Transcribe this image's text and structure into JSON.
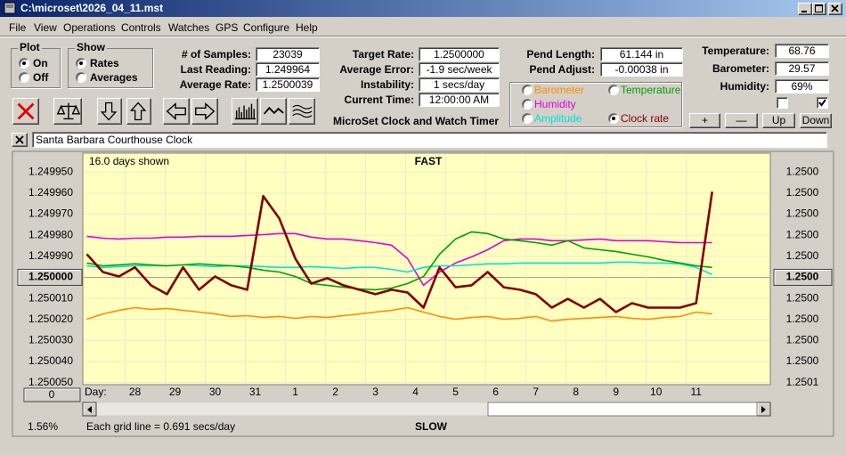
{
  "window": {
    "title": "C:\\microset\\2026_04_11.mst"
  },
  "menu": [
    "File",
    "View",
    "Operations",
    "Controls",
    "Watches",
    "GPS",
    "Configure",
    "Help"
  ],
  "plot_group": {
    "label": "Plot",
    "options": [
      "On",
      "Off"
    ]
  },
  "show_group": {
    "label": "Show",
    "options": [
      "Rates",
      "Averages"
    ]
  },
  "stats": [
    {
      "label": "# of Samples:",
      "value": "23039"
    },
    {
      "label": "Last Reading:",
      "value": "1.249964"
    },
    {
      "label": "Average Rate:",
      "value": "1.2500039"
    }
  ],
  "timing": [
    {
      "label": "Target Rate:",
      "value": "1.2500000"
    },
    {
      "label": "Average Error:",
      "value": "-1.9 sec/week"
    },
    {
      "label": "Instability:",
      "value": "1 secs/day"
    },
    {
      "label": "Current Time:",
      "value": "12:00:00 AM"
    }
  ],
  "app_name": "MicroSet Clock and Watch Timer",
  "pendulum": [
    {
      "label": "Pend Length:",
      "value": "61.144 in"
    },
    {
      "label": "Pend Adjust:",
      "value": "-0.00038 in"
    }
  ],
  "environment": [
    {
      "label": "Temperature:",
      "value": "68.76"
    },
    {
      "label": "Barometer:",
      "value": "29.57"
    },
    {
      "label": "Humidity:",
      "value": "69%"
    }
  ],
  "adjust_buttons": [
    "+",
    "—",
    "Up",
    "Down"
  ],
  "clock_name": "Santa Barbara Courthouse Clock",
  "chart_data": {
    "type": "line",
    "days_shown": "16.0 days shown",
    "top_label": "FAST",
    "bottom_label": "SLOW",
    "x_label": "Day:",
    "left_button": "0",
    "footer_left": "1.56%",
    "footer_note": "Each grid line = 0.691 secs/day",
    "grid": true,
    "y_inverted": true,
    "xlim": [
      -1.3,
      15.85
    ],
    "xticks": [
      {
        "value": 0,
        "label": "28"
      },
      {
        "value": 1,
        "label": "29"
      },
      {
        "value": 2,
        "label": "30"
      },
      {
        "value": 3,
        "label": "31"
      },
      {
        "value": 4,
        "label": "1"
      },
      {
        "value": 5,
        "label": "2"
      },
      {
        "value": 6,
        "label": "3"
      },
      {
        "value": 7,
        "label": "4"
      },
      {
        "value": 8,
        "label": "5"
      },
      {
        "value": 9,
        "label": "6"
      },
      {
        "value": 10,
        "label": "7"
      },
      {
        "value": 11,
        "label": "8"
      },
      {
        "value": 12,
        "label": "9"
      },
      {
        "value": 13,
        "label": "10"
      },
      {
        "value": 14,
        "label": "11"
      }
    ],
    "ylim": [
      1.249941,
      1.250051
    ],
    "yticks": [
      {
        "value": 1.24995,
        "label": "1.249950"
      },
      {
        "value": 1.24996,
        "label": "1.249960"
      },
      {
        "value": 1.24997,
        "label": "1.249970"
      },
      {
        "value": 1.24998,
        "label": "1.249980"
      },
      {
        "value": 1.24999,
        "label": "1.249990"
      },
      {
        "value": 1.25,
        "label": "1.250000"
      },
      {
        "value": 1.25001,
        "label": "1.250010"
      },
      {
        "value": 1.25002,
        "label": "1.250020"
      },
      {
        "value": 1.25003,
        "label": "1.250030"
      },
      {
        "value": 1.25004,
        "label": "1.250040"
      },
      {
        "value": 1.25005,
        "label": "1.250050"
      }
    ],
    "y2lim": [
      1.249941,
      1.250051
    ],
    "y2ticks": [
      {
        "value": 1.24995,
        "label": "1.2500"
      },
      {
        "value": 1.24996,
        "label": "1.2500"
      },
      {
        "value": 1.24997,
        "label": "1.2500"
      },
      {
        "value": 1.24998,
        "label": "1.2500"
      },
      {
        "value": 1.24999,
        "label": "1.2500"
      },
      {
        "value": 1.25,
        "label": "1.2500"
      },
      {
        "value": 1.25001,
        "label": "1.2500"
      },
      {
        "value": 1.25002,
        "label": "1.2500"
      },
      {
        "value": 1.25003,
        "label": "1.2500"
      },
      {
        "value": 1.25004,
        "label": "1.2500"
      },
      {
        "value": 1.25005,
        "label": "1.2501"
      }
    ],
    "x": [
      -1.2,
      -0.8,
      -0.4,
      0,
      0.4,
      0.8,
      1.2,
      1.6,
      2,
      2.4,
      2.8,
      3.2,
      3.6,
      4,
      4.4,
      4.8,
      5.2,
      5.6,
      6,
      6.4,
      6.8,
      7.2,
      7.6,
      8,
      8.4,
      8.8,
      9.2,
      9.6,
      10,
      10.4,
      10.8,
      11.2,
      11.6,
      12,
      12.4,
      12.8,
      13.2,
      13.6,
      14,
      14.4
    ],
    "series": [
      {
        "name": "Clock rate",
        "color": "#800000",
        "values": [
          1.249989,
          1.2499975,
          1.2499996,
          1.2499953,
          1.2500038,
          1.250008,
          1.2499953,
          1.2500059,
          1.2499996,
          1.2500038,
          1.2500059,
          1.2499614,
          1.249972,
          1.2499911,
          1.250003,
          1.2500004,
          1.2500038,
          1.2500059,
          1.250008,
          1.2500059,
          1.2500072,
          1.2500144,
          1.2499953,
          1.2500047,
          1.2500038,
          1.2499975,
          1.2500047,
          1.2500059,
          1.250008,
          1.2500144,
          1.2500102,
          1.2500144,
          1.2500102,
          1.2500165,
          1.2500123,
          1.2500144,
          1.2500144,
          1.2500144,
          1.2500123,
          1.2499593
        ]
      },
      {
        "name": "Barometer",
        "color": "#ff8c00",
        "values": [
          1.2500199,
          1.2500174,
          1.2500157,
          1.2500144,
          1.2500153,
          1.2500148,
          1.2500157,
          1.2500165,
          1.2500174,
          1.2500186,
          1.2500182,
          1.2500191,
          1.2500186,
          1.2500195,
          1.2500186,
          1.2500191,
          1.2500182,
          1.2500174,
          1.2500165,
          1.2500157,
          1.2500144,
          1.2500165,
          1.2500186,
          1.2500199,
          1.2500191,
          1.2500186,
          1.2500199,
          1.2500195,
          1.2500186,
          1.2500208,
          1.2500199,
          1.2500195,
          1.2500191,
          1.2500186,
          1.2500195,
          1.2500199,
          1.2500191,
          1.2500186,
          1.2500165,
          1.2500174
        ]
      },
      {
        "name": "Temperature",
        "color": "#00a000",
        "values": [
          1.2499932,
          1.2499945,
          1.2499941,
          1.2499936,
          1.2499941,
          1.2499945,
          1.2499941,
          1.2499936,
          1.2499941,
          1.2499945,
          1.2499953,
          1.2499966,
          1.2499975,
          1.2499996,
          1.250003,
          1.2500038,
          1.2500047,
          1.2500055,
          1.2500059,
          1.2500051,
          1.250003,
          1.2499996,
          1.249989,
          1.2499818,
          1.2499784,
          1.2499792,
          1.2499818,
          1.2499826,
          1.2499835,
          1.2499847,
          1.2499826,
          1.249986,
          1.2499869,
          1.2499877,
          1.249989,
          1.2499903,
          1.2499919,
          1.2499932,
          1.2499945,
          1.2499953
        ]
      },
      {
        "name": "Humidity",
        "color": "#e000e0",
        "values": [
          1.2499805,
          1.2499814,
          1.2499818,
          1.2499814,
          1.2499814,
          1.2499809,
          1.2499809,
          1.2499805,
          1.2499805,
          1.2499805,
          1.2499801,
          1.2499797,
          1.2499792,
          1.2499792,
          1.2499809,
          1.2499818,
          1.2499818,
          1.2499826,
          1.2499835,
          1.2499847,
          1.2499911,
          1.2500038,
          1.2499975,
          1.2499932,
          1.2499903,
          1.2499869,
          1.2499826,
          1.2499818,
          1.2499818,
          1.2499826,
          1.2499826,
          1.2499822,
          1.2499818,
          1.2499826,
          1.2499826,
          1.2499826,
          1.2499831,
          1.2499835,
          1.2499835,
          1.2499835
        ]
      },
      {
        "name": "Amplitude",
        "color": "#00e0e0",
        "values": [
          1.2499945,
          1.2499953,
          1.2499949,
          1.2499945,
          1.2499945,
          1.2499945,
          1.2499941,
          1.2499945,
          1.2499949,
          1.2499945,
          1.2499945,
          1.2499949,
          1.2499953,
          1.2499953,
          1.2499949,
          1.2499953,
          1.2499958,
          1.2499953,
          1.2499953,
          1.2499962,
          1.2499975,
          1.2499953,
          1.2499945,
          1.2499945,
          1.2499941,
          1.2499936,
          1.2499936,
          1.2499932,
          1.2499932,
          1.2499932,
          1.2499932,
          1.2499932,
          1.2499932,
          1.2499928,
          1.2499928,
          1.2499932,
          1.2499932,
          1.2499936,
          1.2499953,
          1.2499987
        ]
      }
    ]
  }
}
